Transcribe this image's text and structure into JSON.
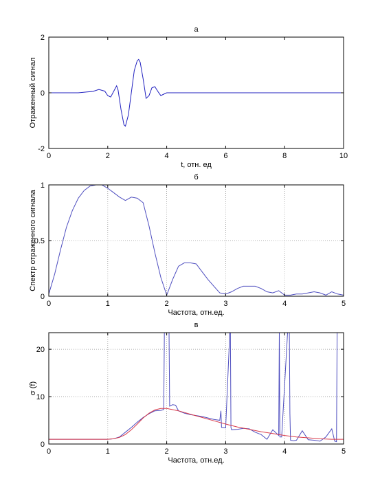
{
  "chart_data": [
    {
      "type": "line",
      "title": "а",
      "xlabel": "t, отн. ед",
      "ylabel": "Отраженный сигнал",
      "xlim": [
        0,
        10
      ],
      "ylim": [
        -2,
        2
      ],
      "xticks": [
        0,
        2,
        4,
        6,
        8,
        10
      ],
      "yticks": [
        -2,
        0,
        2
      ],
      "grid": false,
      "series": [
        {
          "color": "#1f1fbf",
          "x": [
            0,
            0.5,
            1,
            1.5,
            1.7,
            1.9,
            2.0,
            2.1,
            2.2,
            2.3,
            2.35,
            2.45,
            2.55,
            2.6,
            2.7,
            2.8,
            2.9,
            3.0,
            3.05,
            3.1,
            3.2,
            3.3,
            3.4,
            3.5,
            3.6,
            3.7,
            3.8,
            3.9,
            4.0,
            4.5,
            5,
            6,
            7,
            8,
            9,
            10
          ],
          "y": [
            0,
            0,
            0,
            0.05,
            0.12,
            0.06,
            -0.1,
            -0.15,
            0.05,
            0.25,
            0.1,
            -0.6,
            -1.15,
            -1.2,
            -0.8,
            0.0,
            0.8,
            1.15,
            1.2,
            1.1,
            0.5,
            -0.2,
            -0.1,
            0.18,
            0.22,
            0.05,
            -0.1,
            -0.05,
            0,
            0,
            0,
            0,
            0,
            0,
            0,
            0
          ]
        }
      ]
    },
    {
      "type": "line",
      "title": "б",
      "xlabel": "Частота, отн.ед.",
      "ylabel": "Спектр отраженного сигнала",
      "xlim": [
        0,
        5
      ],
      "ylim": [
        0,
        1
      ],
      "xticks": [
        0,
        1,
        2,
        3,
        4,
        5
      ],
      "yticks": [
        0,
        0.5,
        1
      ],
      "grid": true,
      "series": [
        {
          "color": "#4d4dbf",
          "x": [
            0,
            0.1,
            0.2,
            0.3,
            0.4,
            0.5,
            0.6,
            0.7,
            0.8,
            0.9,
            1.0,
            1.1,
            1.2,
            1.3,
            1.4,
            1.5,
            1.6,
            1.7,
            1.8,
            1.9,
            2.0,
            2.1,
            2.2,
            2.3,
            2.4,
            2.5,
            2.6,
            2.7,
            2.8,
            2.9,
            3.0,
            3.1,
            3.2,
            3.3,
            3.4,
            3.5,
            3.6,
            3.7,
            3.8,
            3.9,
            4.0,
            4.1,
            4.2,
            4.3,
            4.4,
            4.5,
            4.6,
            4.7,
            4.8,
            4.9,
            5.0
          ],
          "y": [
            0.02,
            0.2,
            0.42,
            0.62,
            0.77,
            0.88,
            0.95,
            0.99,
            1.0,
            1.0,
            0.97,
            0.93,
            0.89,
            0.86,
            0.89,
            0.88,
            0.84,
            0.63,
            0.39,
            0.17,
            0.01,
            0.15,
            0.27,
            0.3,
            0.3,
            0.29,
            0.22,
            0.15,
            0.09,
            0.03,
            0.02,
            0.04,
            0.07,
            0.09,
            0.09,
            0.09,
            0.07,
            0.04,
            0.03,
            0.05,
            0.01,
            0.01,
            0.02,
            0.02,
            0.03,
            0.04,
            0.03,
            0.01,
            0.04,
            0.02,
            0.01
          ]
        }
      ]
    },
    {
      "type": "line",
      "title": "в",
      "xlabel": "Частота, отн.ед.",
      "ylabel": "σ (f)",
      "xlim": [
        0,
        5
      ],
      "ylim": [
        0,
        23.5
      ],
      "xticks": [
        0,
        1,
        2,
        3,
        4,
        5
      ],
      "yticks": [
        0,
        10,
        20
      ],
      "grid": true,
      "series": [
        {
          "color": "#4d4dbf",
          "x": [
            0,
            0.2,
            0.4,
            0.6,
            0.8,
            1.0,
            1.1,
            1.2,
            1.3,
            1.4,
            1.5,
            1.6,
            1.7,
            1.8,
            1.9,
            1.95,
            1.96,
            2.04,
            2.05,
            2.1,
            2.15,
            2.2,
            2.3,
            2.4,
            2.5,
            2.6,
            2.7,
            2.8,
            2.9,
            2.92,
            2.93,
            3.0,
            3.07,
            3.08,
            3.09,
            3.1,
            3.2,
            3.3,
            3.4,
            3.5,
            3.6,
            3.7,
            3.8,
            3.9,
            3.91,
            3.92,
            3.95,
            4.05,
            4.08,
            4.09,
            4.1,
            4.15,
            4.2,
            4.3,
            4.4,
            4.5,
            4.6,
            4.7,
            4.8,
            4.85,
            4.88,
            4.89,
            4.9,
            4.95,
            5.0
          ],
          "y": [
            1.0,
            1.0,
            1.0,
            1.0,
            1.0,
            1.0,
            1.1,
            1.5,
            2.5,
            3.5,
            4.6,
            5.6,
            6.4,
            7.0,
            7.1,
            7.3,
            23.5,
            23.5,
            8.0,
            8.3,
            8.2,
            7.0,
            6.5,
            6.2,
            6.0,
            5.8,
            5.5,
            5.2,
            5.0,
            7.0,
            3.5,
            3.4,
            23.5,
            23.5,
            3.5,
            3.0,
            3.1,
            3.3,
            3.2,
            2.5,
            2.0,
            1.0,
            3.0,
            1.8,
            23.5,
            1.5,
            1.5,
            23.5,
            23.5,
            6.4,
            0.8,
            0.7,
            0.8,
            2.8,
            0.9,
            0.8,
            0.6,
            1.5,
            3.2,
            0.6,
            0.5,
            23.5,
            23.5,
            23.5,
            23.5
          ]
        },
        {
          "color": "#d83a4a",
          "x": [
            0,
            0.5,
            1.0,
            1.1,
            1.2,
            1.3,
            1.4,
            1.5,
            1.6,
            1.7,
            1.8,
            1.9,
            2.0,
            2.2,
            2.4,
            2.6,
            2.8,
            3.0,
            3.2,
            3.4,
            3.6,
            3.8,
            4.0,
            4.2,
            4.4,
            4.6,
            4.8,
            5.0
          ],
          "y": [
            1.0,
            1.0,
            1.0,
            1.1,
            1.4,
            2.0,
            3.0,
            4.2,
            5.5,
            6.5,
            7.2,
            7.5,
            7.5,
            7.0,
            6.3,
            5.6,
            4.9,
            4.2,
            3.6,
            3.1,
            2.6,
            2.2,
            1.8,
            1.5,
            1.3,
            1.1,
            1.0,
            1.0
          ]
        }
      ]
    }
  ]
}
